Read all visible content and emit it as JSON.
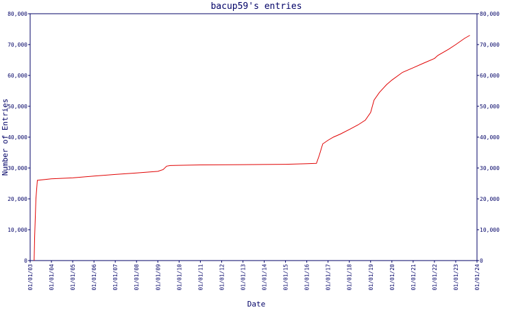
{
  "chart_data": {
    "type": "line",
    "title": "bacup59's entries",
    "xlabel": "Date",
    "ylabel": "Number of Entries",
    "x_ticks": [
      "01/01/03",
      "01/01/04",
      "01/01/05",
      "01/01/06",
      "01/01/07",
      "01/01/08",
      "01/01/09",
      "01/01/10",
      "01/01/11",
      "01/01/12",
      "01/01/13",
      "01/01/14",
      "01/01/15",
      "01/01/16",
      "01/01/17",
      "01/01/18",
      "01/01/19",
      "01/01/20",
      "01/01/21",
      "01/01/22",
      "01/01/23",
      "01/01/24"
    ],
    "y_ticks": [
      0,
      10000,
      20000,
      30000,
      40000,
      50000,
      60000,
      70000,
      80000
    ],
    "y_tick_labels": [
      "0",
      "10,000",
      "20,000",
      "30,000",
      "40,000",
      "50,000",
      "60,000",
      "70,000",
      "80,000"
    ],
    "ylim": [
      0,
      80000
    ],
    "xlim": [
      "2003-01-01",
      "2024-01-01"
    ],
    "grid": false,
    "legend": "none",
    "line_color": "#e00000",
    "axis_color": "#000066",
    "series": [
      {
        "points": [
          [
            "2003-03-10",
            0
          ],
          [
            "2003-03-20",
            8000
          ],
          [
            "2003-04-10",
            20000
          ],
          [
            "2003-05-05",
            26000
          ],
          [
            "2004-01-01",
            26500
          ],
          [
            "2005-01-01",
            26800
          ],
          [
            "2006-01-01",
            27400
          ],
          [
            "2007-01-01",
            27900
          ],
          [
            "2008-01-01",
            28400
          ],
          [
            "2009-01-01",
            28900
          ],
          [
            "2009-04-01",
            29500
          ],
          [
            "2009-06-01",
            30600
          ],
          [
            "2009-08-01",
            30800
          ],
          [
            "2011-01-01",
            31000
          ],
          [
            "2013-01-01",
            31100
          ],
          [
            "2015-01-01",
            31200
          ],
          [
            "2016-01-01",
            31400
          ],
          [
            "2016-06-15",
            31500
          ],
          [
            "2016-08-01",
            34000
          ],
          [
            "2016-10-01",
            37800
          ],
          [
            "2017-01-01",
            39000
          ],
          [
            "2017-04-01",
            40000
          ],
          [
            "2017-08-01",
            41000
          ],
          [
            "2018-01-01",
            42500
          ],
          [
            "2018-06-01",
            44000
          ],
          [
            "2018-10-01",
            45500
          ],
          [
            "2019-01-01",
            48000
          ],
          [
            "2019-03-01",
            52000
          ],
          [
            "2019-06-01",
            54500
          ],
          [
            "2019-10-01",
            57000
          ],
          [
            "2020-01-01",
            58500
          ],
          [
            "2020-07-01",
            61000
          ],
          [
            "2021-01-01",
            62500
          ],
          [
            "2021-07-01",
            64000
          ],
          [
            "2022-01-01",
            65500
          ],
          [
            "2022-03-01",
            66500
          ],
          [
            "2022-09-01",
            68500
          ],
          [
            "2023-01-01",
            70000
          ],
          [
            "2023-06-01",
            72000
          ],
          [
            "2023-09-01",
            73000
          ]
        ]
      }
    ]
  }
}
